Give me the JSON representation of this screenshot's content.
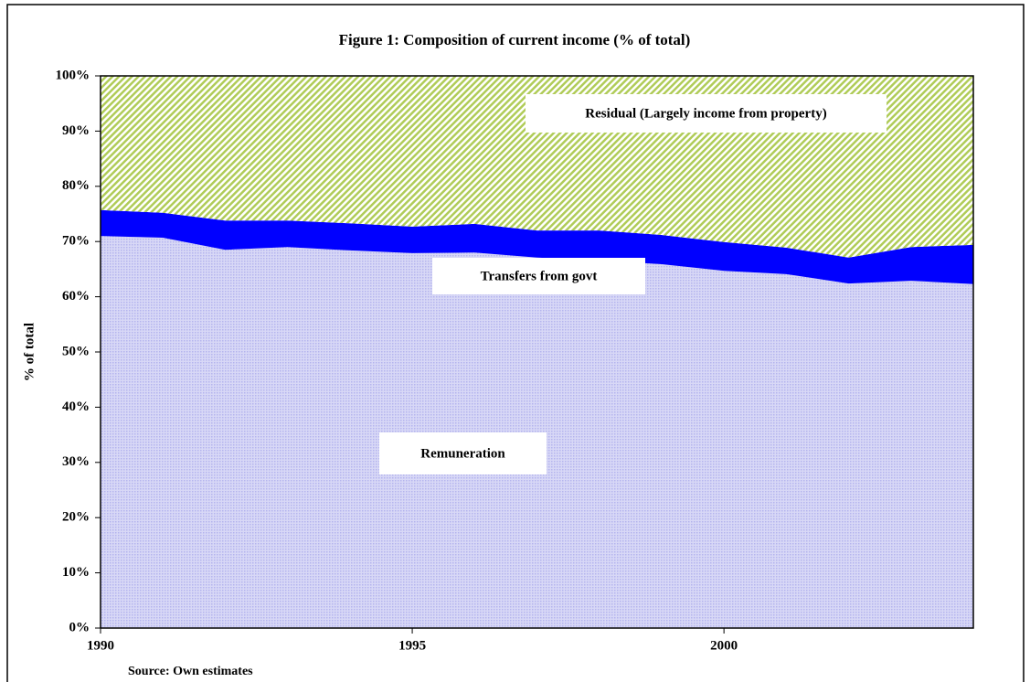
{
  "chart_data": {
    "type": "stacked-area",
    "title": "Figure 1: Composition of current income (% of total)",
    "y_label": "% of total",
    "source": "Source: Own estimates",
    "x": [
      1990,
      1991,
      1992,
      1993,
      1994,
      1995,
      1996,
      1997,
      1998,
      1999,
      2000,
      2001,
      2002,
      2003,
      2004
    ],
    "xlim": [
      1990,
      2004
    ],
    "xticks": [
      1990,
      1995,
      2000
    ],
    "ylim": [
      0,
      100
    ],
    "yticks": [
      {
        "value": 0,
        "label": "0%"
      },
      {
        "value": 10,
        "label": "10%"
      },
      {
        "value": 20,
        "label": "20%"
      },
      {
        "value": 30,
        "label": "30%"
      },
      {
        "value": 40,
        "label": "40%"
      },
      {
        "value": 50,
        "label": "50%"
      },
      {
        "value": 60,
        "label": "60%"
      },
      {
        "value": 70,
        "label": "70%"
      },
      {
        "value": 80,
        "label": "80%"
      },
      {
        "value": 90,
        "label": "90%"
      },
      {
        "value": 100,
        "label": "100%"
      }
    ],
    "series": [
      {
        "name": "Remuneration",
        "color": "#b4b4ee",
        "values": [
          71.0,
          70.7,
          68.5,
          69.0,
          68.4,
          67.9,
          68.0,
          67.1,
          66.6,
          65.9,
          64.7,
          64.1,
          62.4,
          62.9,
          62.3
        ]
      },
      {
        "name": "Transfers from govt",
        "color": "#0000ff",
        "values": [
          4.7,
          4.5,
          5.3,
          4.8,
          4.9,
          4.8,
          5.2,
          4.9,
          5.4,
          5.3,
          5.2,
          4.8,
          4.7,
          6.1,
          7.1
        ]
      },
      {
        "name": "Residual (Largely income from property)",
        "color": "#b0cc58",
        "values": [
          24.3,
          24.8,
          26.2,
          26.2,
          26.7,
          27.3,
          26.8,
          28.0,
          28.0,
          28.8,
          30.1,
          31.1,
          32.9,
          31.0,
          30.6
        ]
      }
    ]
  }
}
